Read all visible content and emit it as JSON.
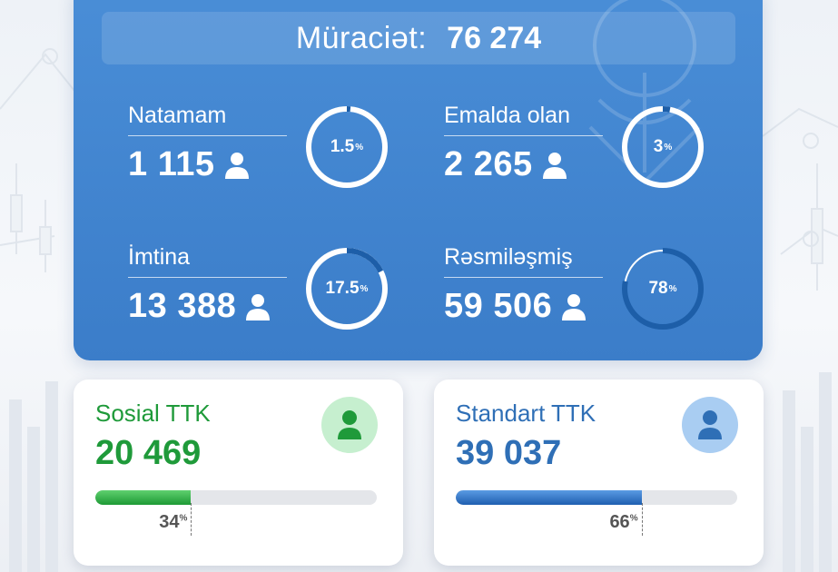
{
  "header": {
    "label": "Müraciət:",
    "value": "76 274"
  },
  "stats": [
    {
      "id": "natamam",
      "label": "Natamam",
      "value": "1 115",
      "percent": "1.5",
      "unit": "%",
      "fraction": 0.015
    },
    {
      "id": "emalda",
      "label": "Emalda olan",
      "value": "2 265",
      "percent": "3",
      "unit": "%",
      "fraction": 0.03
    },
    {
      "id": "imtina",
      "label": "İmtina",
      "value": "13 388",
      "percent": "17.5",
      "unit": "%",
      "fraction": 0.175
    },
    {
      "id": "resmilesmis",
      "label": "Rəsmiləşmiş",
      "value": "59 506",
      "percent": "78",
      "unit": "%",
      "fraction": 0.78
    }
  ],
  "cards": [
    {
      "id": "sosial",
      "title": "Sosial TTK",
      "value": "20 469",
      "percent": "34",
      "unit": "%",
      "fraction": 0.34,
      "color": "#1f9a3a",
      "avatar_bg": "#c6efcf",
      "icon": "person-icon"
    },
    {
      "id": "standart",
      "title": "Standart TTK",
      "value": "39 037",
      "percent": "66",
      "unit": "%",
      "fraction": 0.66,
      "color": "#2f6fb6",
      "avatar_bg": "#a9cdf2",
      "icon": "person-icon"
    }
  ],
  "colors": {
    "main_card": "#4189d2",
    "text_on_blue": "#ffffff",
    "bar_track": "#e4e6ea"
  }
}
